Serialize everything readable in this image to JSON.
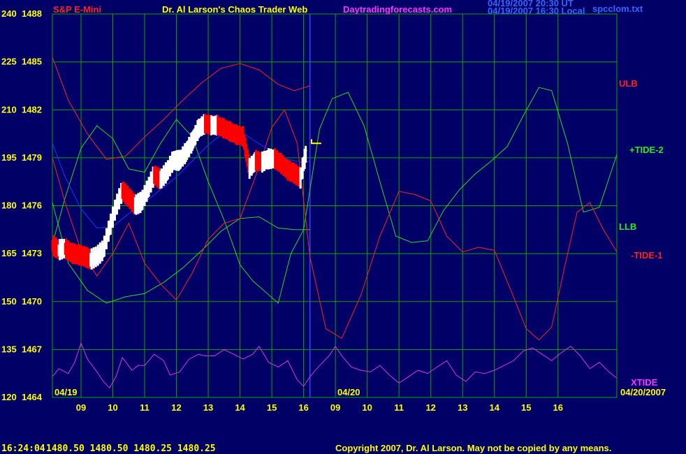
{
  "header": {
    "instrument": "S&P E-Mini",
    "author_title": "Dr. Al Larson's Chaos Trader Web",
    "website": "Daytradingforecasts.com",
    "stamp_line1": "04/19/2007 20:30 UT",
    "stamp_line2": "04/19/2007 16:30 Local",
    "filename": "spcclom.txt"
  },
  "footer": {
    "time_quote": "16:24:04",
    "quote_values": "1480.50 1480.50 1480.25 1480.25",
    "copyright": "Copyright 2007, Dr. Al Larson. May not be copied by any means."
  },
  "colors": {
    "background": "#000066",
    "grid": "#00aa00",
    "price_up": "#ffffff",
    "price_down": "#ff0000",
    "ulb_llb": "#ff2020",
    "tide_plus2": "#22dd22",
    "tide_minus1": "#ff2020",
    "xtide": "#dd33dd",
    "moving_avg": "#2233ff",
    "yellow": "#ffff00"
  },
  "chart_data": {
    "type": "line",
    "title": "S&P E-Mini",
    "y_left_labels": [
      "240",
      "225",
      "210",
      "195",
      "180",
      "165",
      "150",
      "135",
      "120"
    ],
    "y_right_labels": [
      "1488",
      "1485",
      "1482",
      "1479",
      "1476",
      "1473",
      "1470",
      "1467",
      "1464"
    ],
    "ylim": [
      1464,
      1488
    ],
    "x_ticks": [
      "09",
      "10",
      "11",
      "12",
      "13",
      "14",
      "15",
      "16",
      "09",
      "10",
      "11",
      "12",
      "13",
      "14",
      "15",
      "16"
    ],
    "x_range_hours": [
      8.1,
      25.85
    ],
    "day_labels": [
      "04/19",
      "04/20",
      "04/20/2007"
    ],
    "grid": true,
    "series_labels": [
      "ULB",
      "+TIDE-2",
      "LLB",
      "-TIDE-1",
      "XTIDE"
    ],
    "series": [
      {
        "name": "ULB",
        "x": [
          8.1,
          8.6,
          9.2,
          9.8,
          10.4,
          11.0,
          11.6,
          12.2,
          12.8,
          13.4,
          14.0,
          14.6,
          15.2,
          15.7,
          16.2
        ],
        "values": [
          1485.3,
          1482.6,
          1480.5,
          1478.9,
          1479.1,
          1480.3,
          1481.4,
          1482.6,
          1483.7,
          1484.6,
          1484.9,
          1484.5,
          1483.6,
          1483.2,
          1483.5
        ]
      },
      {
        "name": "LLB",
        "x": [
          8.1,
          8.6,
          9.2,
          9.8,
          10.4,
          11.0,
          11.6,
          12.2,
          12.8,
          13.4,
          14.0,
          14.6,
          15.2,
          15.7,
          16.2
        ],
        "values": [
          1476.2,
          1472.4,
          1470.7,
          1469.9,
          1470.3,
          1470.5,
          1471.2,
          1472.1,
          1473.2,
          1474.4,
          1475.2,
          1475.3,
          1474.6,
          1474.5,
          1474.5
        ]
      },
      {
        "name": "+TIDE-2",
        "x": [
          8.1,
          8.5,
          9.0,
          9.5,
          10.0,
          10.5,
          11.0,
          11.5,
          12.0,
          12.5,
          13.0,
          13.5,
          14.0,
          14.4,
          14.8,
          15.2,
          15.6,
          16.0,
          16.5,
          16.9,
          17.4,
          17.9,
          18.4,
          18.9,
          19.4,
          19.9,
          20.4,
          20.9,
          21.4,
          21.9,
          22.4,
          22.9,
          23.4,
          23.8,
          24.3,
          24.8,
          25.3,
          25.85
        ],
        "values": [
          1473.6,
          1476.5,
          1479.6,
          1481.0,
          1480.2,
          1478.3,
          1478.1,
          1479.9,
          1481.4,
          1480.3,
          1477.5,
          1475.1,
          1472.3,
          1471.3,
          1470.6,
          1469.9,
          1473.0,
          1474.5,
          1480.8,
          1482.7,
          1483.1,
          1481.0,
          1477.5,
          1474.1,
          1473.7,
          1473.8,
          1475.7,
          1477.0,
          1478.0,
          1478.8,
          1479.7,
          1481.6,
          1483.4,
          1483.2,
          1479.9,
          1475.6,
          1475.9,
          1479.2
        ]
      },
      {
        "name": "-TIDE-1",
        "x": [
          8.1,
          8.5,
          9.0,
          9.5,
          10.0,
          10.5,
          11.0,
          11.5,
          12.0,
          12.5,
          13.0,
          13.5,
          14.0,
          14.5,
          15.0,
          15.4,
          15.8,
          16.2,
          16.7,
          17.2,
          17.8,
          18.4,
          19.0,
          19.5,
          20.0,
          20.5,
          21.0,
          21.5,
          22.0,
          22.5,
          23.0,
          23.4,
          23.8,
          24.2,
          24.6,
          25.0,
          25.4,
          25.85
        ],
        "values": [
          1479.0,
          1476.2,
          1473.2,
          1471.6,
          1473.0,
          1474.9,
          1472.4,
          1471.1,
          1470.1,
          1471.8,
          1473.9,
          1474.9,
          1475.2,
          1477.9,
          1480.9,
          1482.0,
          1479.9,
          1472.8,
          1468.3,
          1467.7,
          1470.4,
          1474.1,
          1476.9,
          1476.7,
          1476.3,
          1474.1,
          1473.1,
          1473.4,
          1473.2,
          1470.8,
          1468.3,
          1467.6,
          1468.4,
          1472.1,
          1475.6,
          1476.2,
          1474.6,
          1473.1
        ]
      },
      {
        "name": "MA",
        "x": [
          8.1,
          8.5,
          9.0,
          9.5,
          10.0,
          10.5,
          11.0,
          11.5,
          12.0,
          12.5,
          13.0,
          13.5,
          14.0,
          14.5,
          15.0,
          15.5,
          16.0,
          16.2
        ],
        "values": [
          1479.9,
          1477.8,
          1475.8,
          1474.6,
          1474.7,
          1475.5,
          1476.2,
          1477.0,
          1477.8,
          1478.8,
          1479.8,
          1480.6,
          1480.7,
          1480.0,
          1479.4,
          1478.9,
          1478.7,
          1478.8
        ]
      },
      {
        "name": "XTIDE",
        "x": [
          8.1,
          8.3,
          8.6,
          8.8,
          9.0,
          9.2,
          9.5,
          9.7,
          9.9,
          10.1,
          10.3,
          10.6,
          10.8,
          11.0,
          11.3,
          11.6,
          11.8,
          12.1,
          12.4,
          12.7,
          12.9,
          13.2,
          13.5,
          13.8,
          14.1,
          14.4,
          14.6,
          14.9,
          15.2,
          15.5,
          15.8,
          16.0,
          16.2,
          16.5,
          16.8,
          17.0,
          17.2,
          17.5,
          17.8,
          18.1,
          18.4,
          18.7,
          19.0,
          19.3,
          19.6,
          19.9,
          20.2,
          20.5,
          20.8,
          21.1,
          21.4,
          21.7,
          22.0,
          22.3,
          22.6,
          22.9,
          23.2,
          23.5,
          23.8,
          24.1,
          24.4,
          24.7,
          25.0,
          25.3,
          25.6,
          25.85
        ],
        "values": [
          1465.3,
          1465.8,
          1465.5,
          1466.2,
          1467.4,
          1466.4,
          1465.6,
          1465.0,
          1464.6,
          1465.3,
          1466.5,
          1465.7,
          1466.0,
          1466.0,
          1466.7,
          1466.3,
          1465.4,
          1465.6,
          1466.4,
          1466.7,
          1466.6,
          1466.6,
          1467.0,
          1466.7,
          1466.4,
          1466.7,
          1467.2,
          1466.2,
          1465.9,
          1466.3,
          1465.1,
          1464.7,
          1465.3,
          1466.0,
          1466.6,
          1467.2,
          1466.6,
          1465.9,
          1465.7,
          1465.6,
          1466.0,
          1465.4,
          1464.9,
          1465.3,
          1465.7,
          1465.5,
          1465.9,
          1466.3,
          1465.4,
          1465.0,
          1465.6,
          1465.5,
          1465.7,
          1466.0,
          1466.3,
          1466.9,
          1467.1,
          1466.7,
          1466.3,
          1466.8,
          1467.2,
          1466.6,
          1465.8,
          1466.2,
          1465.6,
          1465.2
        ]
      },
      {
        "name": "Price",
        "x": [
          8.1,
          8.3,
          8.5,
          8.7,
          8.9,
          9.1,
          9.3,
          9.5,
          9.7,
          9.9,
          10.1,
          10.3,
          10.5,
          10.7,
          10.9,
          11.1,
          11.3,
          11.5,
          11.7,
          11.9,
          12.1,
          12.3,
          12.5,
          12.7,
          12.9,
          13.1,
          13.3,
          13.5,
          13.7,
          13.9,
          14.1,
          14.3,
          14.5,
          14.7,
          14.9,
          15.1,
          15.3,
          15.5,
          15.7,
          15.9,
          16.1
        ],
        "values": [
          1473.5,
          1473.2,
          1473.3,
          1473.0,
          1472.9,
          1472.8,
          1472.6,
          1472.8,
          1473.2,
          1474.6,
          1475.9,
          1476.9,
          1476.5,
          1476.0,
          1476.2,
          1477.0,
          1477.9,
          1477.6,
          1478.1,
          1478.8,
          1478.8,
          1479.3,
          1480.0,
          1480.8,
          1481.1,
          1481.0,
          1481.0,
          1480.8,
          1480.6,
          1480.4,
          1480.3,
          1478.3,
          1478.8,
          1478.7,
          1478.9,
          1478.9,
          1478.6,
          1478.2,
          1478.0,
          1477.7,
          1479.5
        ]
      }
    ]
  }
}
